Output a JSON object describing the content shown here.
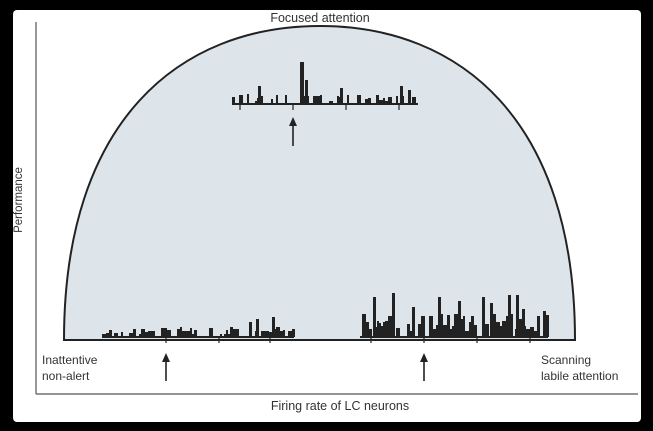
{
  "title": "Focused attention",
  "xlabel": "Firing rate of LC neurons",
  "ylabel": "Performance",
  "left_label": [
    "Inattentive",
    "non-alert"
  ],
  "right_label": [
    "Scanning",
    "labile attention"
  ],
  "colors": {
    "background": "#000000",
    "panel": "#ffffff",
    "curve_fill": "#dde5ea",
    "ink": "#222222",
    "text": "#333333"
  },
  "icons": [
    "arrow-up-icon"
  ]
}
